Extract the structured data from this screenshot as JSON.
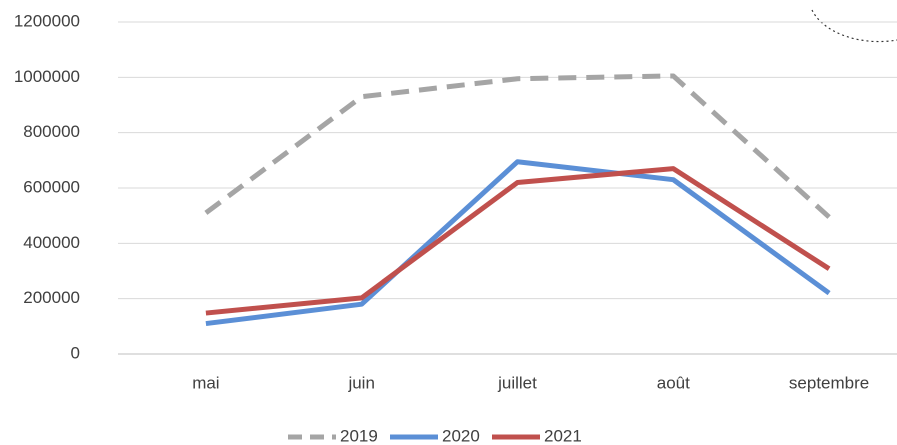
{
  "chart_data": {
    "type": "line",
    "categories": [
      "mai",
      "juin",
      "juillet",
      "août",
      "septembre"
    ],
    "series": [
      {
        "name": "2019",
        "color": "#a5a5a5",
        "dashed": true,
        "values": [
          510000,
          930000,
          995000,
          1005000,
          495000
        ]
      },
      {
        "name": "2020",
        "color": "#5b8fd6",
        "dashed": false,
        "values": [
          110000,
          180000,
          695000,
          630000,
          220000
        ]
      },
      {
        "name": "2021",
        "color": "#c0504d",
        "dashed": false,
        "values": [
          148000,
          203000,
          620000,
          670000,
          308000
        ]
      }
    ],
    "ylim": [
      0,
      1200000
    ],
    "yticks": [
      0,
      200000,
      400000,
      600000,
      800000,
      1000000,
      1200000
    ],
    "grid": true,
    "legend": "bottom"
  }
}
